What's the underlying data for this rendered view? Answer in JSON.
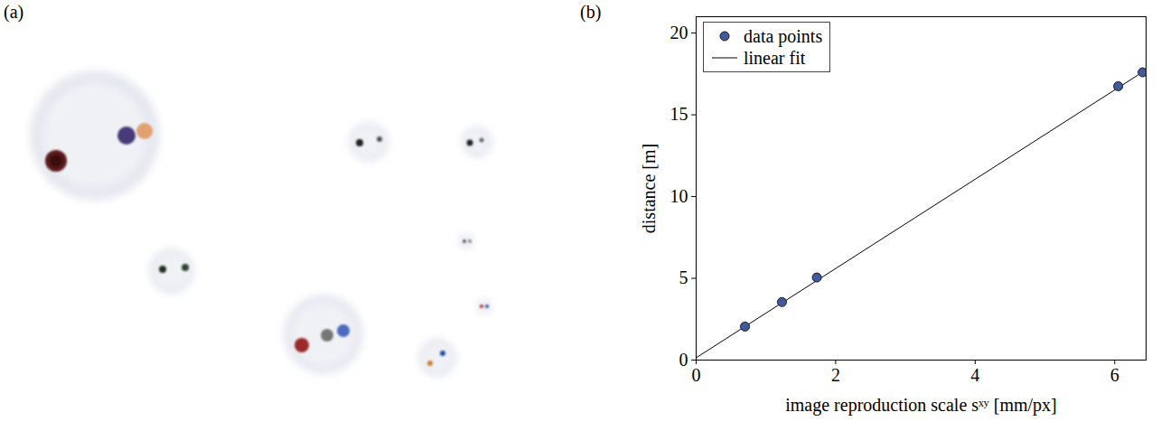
{
  "panel_labels": [
    "(a)",
    "(b)"
  ],
  "chart_data": {
    "type": "scatter",
    "xlabel": "image reproduction scale sˣʸ [mm/px]",
    "ylabel": "distance [m]",
    "xlim": [
      0,
      6.45
    ],
    "ylim": [
      0,
      21
    ],
    "xticks": [
      0,
      2,
      4,
      6
    ],
    "yticks": [
      0,
      5,
      10,
      15,
      20
    ],
    "legend": "top-left",
    "series": [
      {
        "name": "data points",
        "type": "scatter",
        "marker": "circle",
        "color": "#3f5b9c",
        "x": [
          0.7,
          1.23,
          1.73,
          6.05,
          6.4
        ],
        "values": [
          2.05,
          3.55,
          5.05,
          16.75,
          17.6
        ]
      },
      {
        "name": "linear fit",
        "type": "line",
        "line_style": "solid",
        "color": "#000000",
        "x": [
          0,
          6.45
        ],
        "values": [
          0.14,
          17.75
        ]
      }
    ]
  }
}
